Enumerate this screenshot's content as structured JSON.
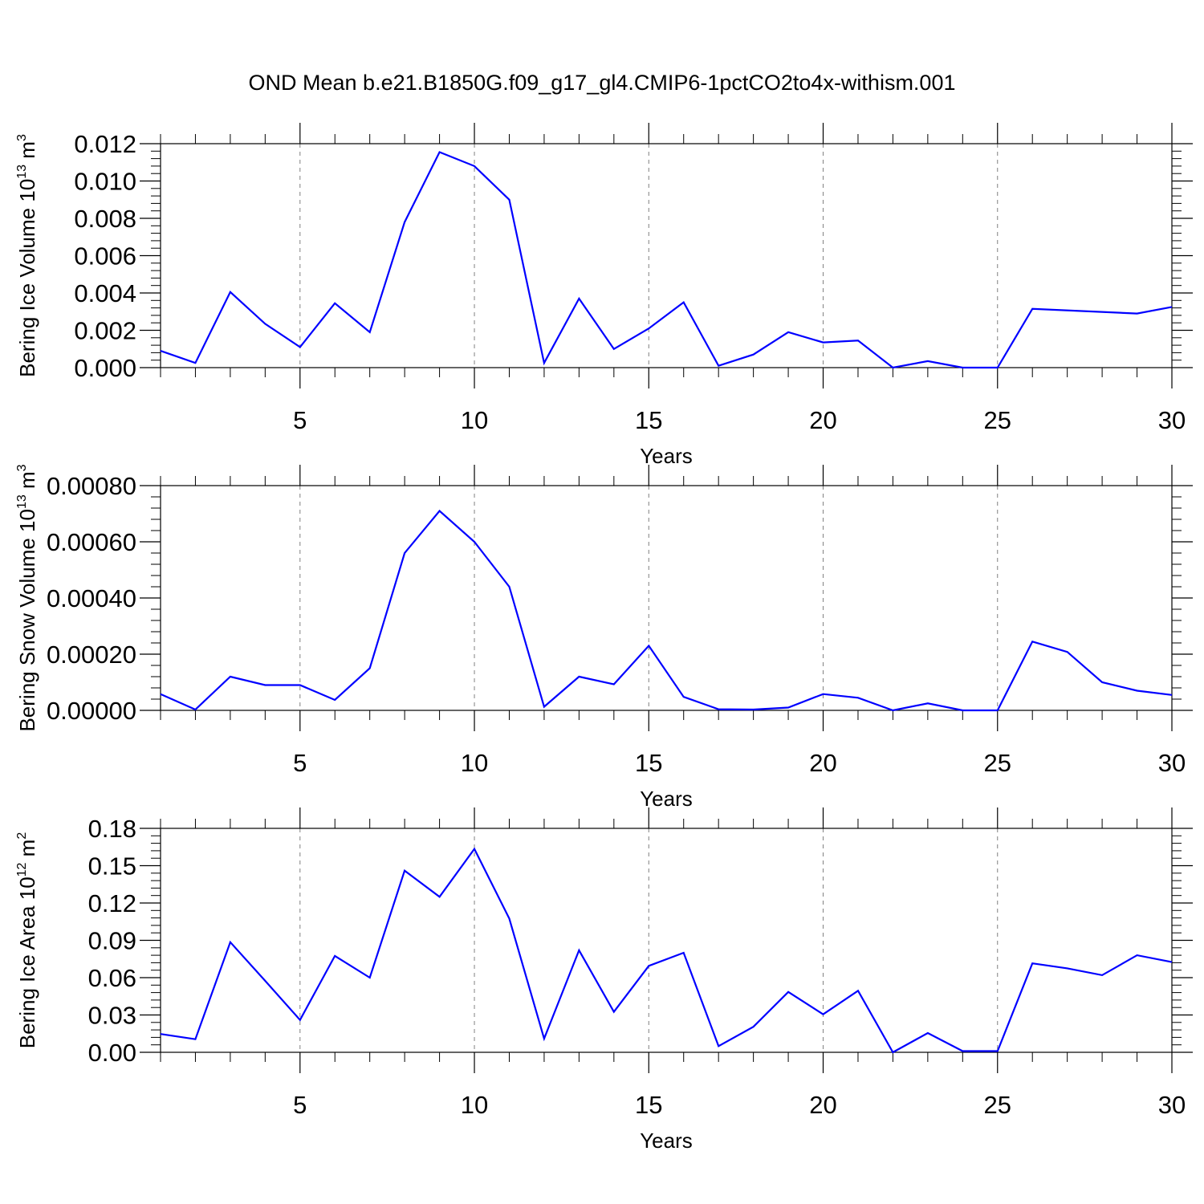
{
  "page": {
    "title": "OND Mean b.e21.B1850G.f09_g17_gl4.CMIP6-1pctCO2to4x-withism.001"
  },
  "colors": {
    "line": "#0000ff",
    "axis": "#000000",
    "grid": "#808080"
  },
  "chart_data": [
    {
      "type": "line",
      "xlabel": "Years",
      "ylabel": {
        "main": "Bering Ice Volume 10",
        "exp": "13",
        "unit": " m",
        "unit_exp": "3"
      },
      "xlim": [
        1,
        30
      ],
      "ylim": [
        0,
        0.012
      ],
      "yticks": [
        "0.000",
        "0.002",
        "0.004",
        "0.006",
        "0.008",
        "0.010",
        "0.012"
      ],
      "ytick_values": [
        0,
        0.002,
        0.004,
        0.006,
        0.008,
        0.01,
        0.012
      ],
      "xticks": [
        "5",
        "10",
        "15",
        "20",
        "25",
        "30"
      ],
      "xtick_values": [
        5,
        10,
        15,
        20,
        25,
        30
      ],
      "grid": "vertical dashed at major x ticks",
      "series": [
        {
          "x": [
            1,
            2,
            3,
            4,
            5,
            6,
            7,
            8,
            9,
            10,
            11,
            12,
            13,
            14,
            15,
            16,
            17,
            18,
            19,
            20,
            21,
            22,
            23,
            24,
            25,
            26,
            29,
            30
          ],
          "y": [
            0.0009,
            0.00025,
            0.00405,
            0.00235,
            0.0011,
            0.00345,
            0.0019,
            0.0078,
            0.01155,
            0.0108,
            0.009,
            0.00025,
            0.0037,
            0.001,
            0.0021,
            0.0035,
            0.0001,
            0.0007,
            0.0019,
            0.00135,
            0.00145,
            0.0,
            0.00035,
            0.0,
            0.0,
            0.00315,
            0.0029,
            0.00325
          ]
        }
      ]
    },
    {
      "type": "line",
      "xlabel": "Years",
      "ylabel": {
        "main": "Bering Snow Volume 10",
        "exp": "13",
        "unit": " m",
        "unit_exp": "3"
      },
      "xlim": [
        1,
        30
      ],
      "ylim": [
        0,
        0.0008
      ],
      "yticks": [
        "0.00000",
        "0.00020",
        "0.00040",
        "0.00060",
        "0.00080"
      ],
      "ytick_values": [
        0,
        0.0002,
        0.0004,
        0.0006,
        0.0008
      ],
      "xticks": [
        "5",
        "10",
        "15",
        "20",
        "25",
        "30"
      ],
      "xtick_values": [
        5,
        10,
        15,
        20,
        25,
        30
      ],
      "grid": "vertical dashed at major x ticks",
      "series": [
        {
          "x": [
            1,
            2,
            3,
            4,
            5,
            6,
            7,
            8,
            9,
            10,
            11,
            12,
            13,
            14,
            15,
            16,
            17,
            18,
            19,
            20,
            21,
            22,
            23,
            24,
            25,
            26,
            27,
            28,
            29,
            30
          ],
          "y": [
            5.8e-05,
            3e-06,
            0.00012,
            9e-05,
            9e-05,
            3.7e-05,
            0.00015,
            0.00056,
            0.00071,
            0.0006,
            0.00044,
            1.3e-05,
            0.00012,
            9.3e-05,
            0.00023,
            4.8e-05,
            4e-06,
            3e-06,
            1e-05,
            5.8e-05,
            4.5e-05,
            0.0,
            2.5e-05,
            0.0,
            0.0,
            0.000245,
            0.000208,
            0.0001,
            7e-05,
            5.5e-05
          ]
        }
      ]
    },
    {
      "type": "line",
      "xlabel": "Years",
      "ylabel": {
        "main": "Bering Ice Area 10",
        "exp": "12",
        "unit": " m",
        "unit_exp": "2"
      },
      "xlim": [
        1,
        30
      ],
      "ylim": [
        0,
        0.18
      ],
      "yticks": [
        "0.00",
        "0.03",
        "0.06",
        "0.09",
        "0.12",
        "0.15",
        "0.18"
      ],
      "ytick_values": [
        0,
        0.03,
        0.06,
        0.09,
        0.12,
        0.15,
        0.18
      ],
      "xticks": [
        "5",
        "10",
        "15",
        "20",
        "25",
        "30"
      ],
      "xtick_values": [
        5,
        10,
        15,
        20,
        25,
        30
      ],
      "grid": "vertical dashed at major x ticks",
      "series": [
        {
          "x": [
            1,
            2,
            3,
            4,
            5,
            6,
            7,
            8,
            9,
            10,
            11,
            12,
            13,
            14,
            15,
            16,
            17,
            18,
            19,
            20,
            21,
            22,
            23,
            24,
            25,
            26,
            27,
            28,
            29,
            30
          ],
          "y": [
            0.0147,
            0.0105,
            0.0885,
            0.0575,
            0.026,
            0.0775,
            0.06,
            0.146,
            0.125,
            0.1635,
            0.1075,
            0.011,
            0.082,
            0.0325,
            0.0695,
            0.08,
            0.005,
            0.0205,
            0.0485,
            0.0305,
            0.0495,
            0.0,
            0.0155,
            0.001,
            0.001,
            0.0715,
            0.0675,
            0.062,
            0.078,
            0.0725
          ]
        }
      ]
    }
  ]
}
